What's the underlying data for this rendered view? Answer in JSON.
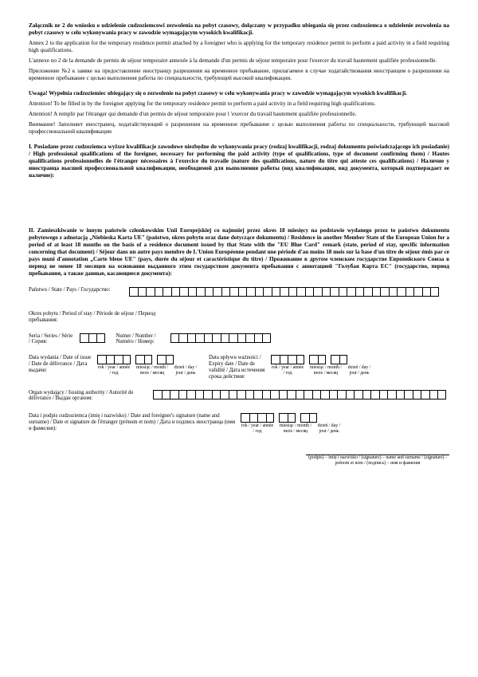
{
  "header": {
    "title_pl": "Załącznik nr 2 do wniosku o udzielenie cudzoziemcowi zezwolenia na pobyt czasowy, dołączany w przypadku ubiegania się przez cudzoziemca o udzielenie zezwolenia na pobyt czasowy w celu wykonywania pracy w zawodzie wymagającym wysokich kwalifikacji.",
    "ann_en": "Annex 2 to the application for the temporary residence permit attached by a foreigner who is applying for the temporary residence permit to perform a paid activity in a field requiring high qualifications.",
    "ann_fr": "L'annexe no 2 de la demande de permis de séjour temporaire annexée à la demande d'un permis de séjour temporaire pour l'exercer du travail hautement qualifiée professionnelle.",
    "ann_ru": "Приложение №2 к заявке на предоставление иностранцу разрешения на временное пребывание, прилагаемое в случае ходатайствования иностранцем о разрешении на временное пребывание с целью выполнения работы по специальности, требующей высокой квалификации."
  },
  "uwaga": {
    "title": "Uwaga! Wypełnia cudzoziemiec ubiegający się o zezwolenie na pobyt czasowy w celu wykonywania pracy w zawodzie wymagającym wysokich kwalifikacji.",
    "en": "Attention! To be filled in by the foreigner applying for the temporary residence permit to perform a paid activity in a field requiring high qualifications.",
    "fr": "Attention! A remplir par l'étranger qui demande d'un permis de séjour temporaire pour l 'exercer du travail hautement qualifiée professionnelle.",
    "ru": "Внимание! Заполняет иностранец, ходатайствующий о разрешении на временное пребывание с целью выполнения работы по специальности, требующей высокой профессиональной квалификации"
  },
  "sec1": "I. Posiadane przez cudzoziemca wyższe kwalifikacje zawodowe niezbędne do wykonywania pracy (rodzaj kwalifikacji, rodzaj dokumentu poświadczającego ich posiadanie) / High professional qualifications of the foreigner, necessary for performing the paid activity (type of qualifications, type of document confirming them) / Hautes qualifications professionnelles de l'étranger nécessaires à l'exercice du travaile (nature des qualifications, nature du titre qui atteste ces qualifications) / Наличие у иностранца высшей профессиональной квалификации, необходимой для выполнения работы (вид квалификации, вид документа, который подтверждает ее наличие):",
  "sec2": "II. Zamieszkiwanie w innym państwie członkowskim Unii Europejskiej co najmniej przez okres 18 miesięcy na podstawie wydanego przez to państwo dokumentu pobytowego z adnotacją „Niebieska Karta UE\" (państwo, okres pobytu oraz dane dotyczące dokumentu) / Residence in another Member State of the European Union for a period of at least 18 months on the basis of a residence document issued by that State with the \"EU Blue Card\" remark (state, period of stay, specific information concerning that document) / Séjour dans un autre pays membre de L'Union Européenne pendant une période d'au moins 18 mois sur la base d'un titre de séjour émis par ce pays muni d'annotation „Carte bleue UE\" (pays, durée du séjour et caractéristique du titre) / Проживание в другом членском государстве Европейского Союза в период не менее 18 месяцев на основании выданного этим государством документа пребывания с аннотацией \"Голубая Карта ЕС\" (государство, период пребывания, а также данные, касающиеся документа):",
  "labels": {
    "state": "Państwo / State / Pays / Государство:",
    "period": "Okres pobytu / Period of stay / Période de séjour / Период пребывания:",
    "seria": "Seria / Series / Série / Серия:",
    "numer": "Numer / Number / Numéro / Номер:",
    "issueDate": "Data wydania / Date of issue / Date de délivrance / Дата выдачи:",
    "expiryDate": "Data upływu ważności / Expiry date / Date de validité / Дата истечения срока действия:",
    "organ": "Organ wydający / Issuing authority / Autorité de délivrance / Выдан органом:",
    "dateSig": "Data i podpis cudzoziemca (imię i nazwisko) / Date and foreigner's signature (name and surname) / Date et signature de l'étranger (prénom et nom) / Дата и подпись иностранца (имя и фамилия):",
    "year": "rok / year / année / год",
    "month": "miesiąc / month / mois / месяц",
    "day": "dzień / day / jour / день",
    "sig": "(podpis) – imię i nazwisko / (signature) – name and surname / (signature) - prénom et nom / (подпись) – имя и фамилия"
  }
}
